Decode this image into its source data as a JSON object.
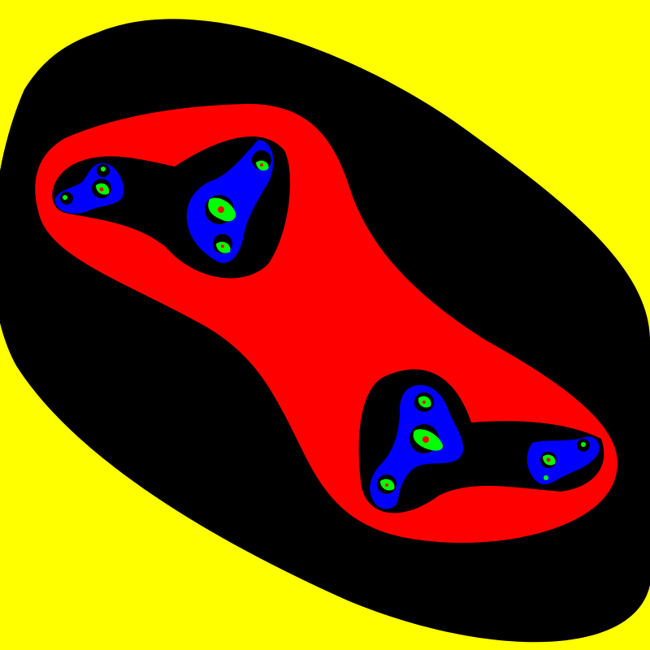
{
  "image": {
    "description_kind": "fractal render (escape-time bands)",
    "palette": {
      "background": "#ffff00",
      "band_outer": "#000000",
      "band_red": "#ff0000",
      "band_blue": "#0000ff",
      "band_green": "#00ff00"
    }
  }
}
